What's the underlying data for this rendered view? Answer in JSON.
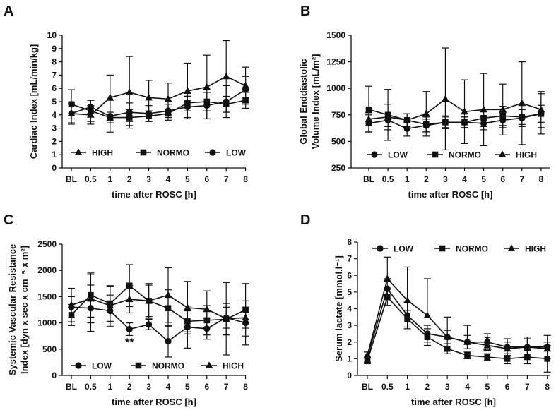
{
  "panels": {
    "A": {
      "label": "A"
    },
    "B": {
      "label": "B"
    },
    "C": {
      "label": "C"
    },
    "D": {
      "label": "D"
    }
  },
  "chart_data": [
    {
      "id": "A",
      "type": "line",
      "panel_label": "A",
      "title": "",
      "xlabel": "time after ROSC [h]",
      "ylabel": "Cardiac Index [mL/min/kg]",
      "ylabel_lines": [
        "Cardiac Index [mL/min/kg]"
      ],
      "categories": [
        "BL",
        "0.5",
        "1",
        "2",
        "3",
        "4",
        "5",
        "6",
        "7",
        "8"
      ],
      "ylim": [
        0,
        10
      ],
      "yticks": [
        0,
        1,
        2,
        3,
        4,
        5,
        6,
        7,
        8,
        9,
        10
      ],
      "ytick_labels": [
        "0",
        "1",
        "2",
        "3",
        "4",
        "5",
        "6",
        "7",
        "8",
        "9",
        "10"
      ],
      "legend_position": "bottom",
      "legend_order": [
        "HIGH",
        "NORMO",
        "LOW"
      ],
      "annotations": [],
      "series": [
        {
          "name": "LOW",
          "marker": "circle",
          "values": [
            4.1,
            4.6,
            3.9,
            4.2,
            4.1,
            4.3,
            4.6,
            4.7,
            5.0,
            5.9
          ],
          "errors": [
            0.8,
            0.5,
            1.2,
            0.7,
            0.6,
            0.5,
            0.8,
            1.0,
            1.2,
            1.0
          ],
          "err_dir": "both"
        },
        {
          "name": "NORMO",
          "marker": "square",
          "values": [
            4.8,
            4.3,
            3.8,
            3.8,
            3.9,
            4.1,
            4.9,
            5.0,
            4.8,
            5.1
          ],
          "errors": [
            1.1,
            0.8,
            0.4,
            0.6,
            0.4,
            0.5,
            0.6,
            0.7,
            0.6,
            0.6
          ],
          "err_dir": "both"
        },
        {
          "name": "HIGH",
          "marker": "triangle",
          "values": [
            4.1,
            4.0,
            5.3,
            5.7,
            5.3,
            5.2,
            5.8,
            6.1,
            6.9,
            6.2
          ],
          "errors": [
            0.7,
            0.7,
            1.7,
            2.7,
            1.3,
            1.2,
            2.1,
            2.4,
            2.7,
            1.4
          ],
          "err_dir": "both"
        }
      ]
    },
    {
      "id": "B",
      "type": "line",
      "panel_label": "B",
      "title": "",
      "xlabel": "time after ROSC [h]",
      "ylabel": "Global Enddiastolic Volume Index [mL/m²]",
      "ylabel_lines": [
        "Global Enddiastolic",
        "Volume Index  [mL/m²]"
      ],
      "categories": [
        "BL",
        "0.5",
        "1",
        "2",
        "3",
        "4",
        "5",
        "6",
        "7",
        "8"
      ],
      "ylim": [
        250,
        1500
      ],
      "yticks": [
        250,
        500,
        750,
        1000,
        1250,
        1500
      ],
      "ytick_labels": [
        "250",
        "500",
        "750",
        "1000",
        "1250",
        "1500"
      ],
      "legend_position": "bottom",
      "legend_order": [
        "LOW",
        "NORMO",
        "HIGH"
      ],
      "annotations": [],
      "series": [
        {
          "name": "LOW",
          "marker": "circle",
          "values": [
            670,
            700,
            620,
            650,
            680,
            680,
            670,
            700,
            720,
            760
          ],
          "errors": [
            80,
            60,
            70,
            60,
            60,
            50,
            60,
            70,
            80,
            80
          ],
          "err_dir": "both"
        },
        {
          "name": "NORMO",
          "marker": "square",
          "values": [
            800,
            750,
            700,
            660,
            680,
            680,
            720,
            740,
            730,
            760
          ],
          "errors": [
            220,
            240,
            60,
            70,
            50,
            50,
            80,
            90,
            70,
            190
          ],
          "err_dir": "both"
        },
        {
          "name": "HIGH",
          "marker": "triangle",
          "values": [
            710,
            730,
            700,
            760,
            900,
            780,
            800,
            800,
            860,
            800
          ],
          "errors": [
            60,
            120,
            60,
            210,
            480,
            300,
            340,
            240,
            390,
            170
          ],
          "err_dir": "both"
        }
      ]
    },
    {
      "id": "C",
      "type": "line",
      "panel_label": "C",
      "title": "",
      "xlabel": "time after ROSC [h]",
      "ylabel": "Systemic Vascular Resistance Index [dyn x sec x cm⁻⁵ x m²]",
      "ylabel_lines": [
        "Systemic Vascular Resistance",
        "Index [dyn x sec x cm⁻⁵ x m²]"
      ],
      "categories": [
        "BL",
        "0.5",
        "1",
        "2",
        "3",
        "4",
        "5",
        "6",
        "7",
        "8"
      ],
      "ylim": [
        0,
        2500
      ],
      "yticks": [
        0,
        500,
        1000,
        1500,
        2000,
        2500
      ],
      "ytick_labels": [
        "0",
        "500",
        "1000",
        "1500",
        "2000",
        "2500"
      ],
      "legend_position": "bottom",
      "legend_order": [
        "LOW",
        "NORMO",
        "HIGH"
      ],
      "annotations": [
        {
          "text": "**",
          "x": "2",
          "y": 640
        }
      ],
      "series": [
        {
          "name": "LOW",
          "marker": "circle",
          "values": [
            1300,
            1280,
            1230,
            880,
            970,
            650,
            920,
            890,
            1100,
            1000
          ],
          "errors": [
            200,
            440,
            300,
            120,
            100,
            300,
            400,
            200,
            200,
            420
          ],
          "err_dir": "both"
        },
        {
          "name": "NORMO",
          "marker": "square",
          "values": [
            1150,
            1530,
            1370,
            1710,
            1420,
            1280,
            1030,
            1050,
            1070,
            1250
          ],
          "errors": [
            200,
            420,
            340,
            400,
            330,
            350,
            200,
            280,
            300,
            500
          ],
          "err_dir": "both"
        },
        {
          "name": "HIGH",
          "marker": "triangle",
          "values": [
            1340,
            1460,
            1330,
            1450,
            1420,
            1530,
            1290,
            1260,
            1080,
            1100
          ],
          "errors": [
            320,
            460,
            370,
            260,
            300,
            520,
            500,
            350,
            690,
            200
          ],
          "err_dir": "both"
        }
      ]
    },
    {
      "id": "D",
      "type": "line",
      "panel_label": "D",
      "title": "",
      "xlabel": "time after ROSC [h]",
      "ylabel": "Serum lactate [mmol.l⁻¹]",
      "ylabel_lines": [
        "Serum lactate [mmol.l⁻¹]"
      ],
      "categories": [
        "BL",
        "0.5",
        "1",
        "2",
        "3",
        "4",
        "5",
        "6",
        "7",
        "8"
      ],
      "ylim": [
        0,
        8
      ],
      "yticks": [
        0,
        1,
        2,
        3,
        4,
        5,
        6,
        7,
        8
      ],
      "ytick_labels": [
        "0",
        "1",
        "2",
        "3",
        "4",
        "5",
        "6",
        "7",
        "8"
      ],
      "legend_position": "top",
      "legend_order": [
        "LOW",
        "NORMO",
        "HIGH"
      ],
      "annotations": [
        {
          "text": "*",
          "x": "5",
          "y": 2.15
        },
        {
          "text": "**",
          "x": "5",
          "y": 1.45
        }
      ],
      "series": [
        {
          "name": "LOW",
          "marker": "circle",
          "values": [
            1.1,
            5.2,
            3.6,
            2.5,
            2.3,
            2.0,
            2.0,
            1.7,
            1.7,
            1.7
          ],
          "errors": [
            0.3,
            0.6,
            0.8,
            0.5,
            0.4,
            0.4,
            0.5,
            0.5,
            0.6,
            0.7
          ],
          "err_dir": "both"
        },
        {
          "name": "NORMO",
          "marker": "square",
          "values": [
            0.9,
            4.7,
            3.4,
            2.3,
            1.6,
            1.2,
            1.1,
            1.0,
            1.1,
            1.0
          ],
          "errors": [
            0.2,
            0.5,
            0.5,
            0.5,
            0.3,
            0.2,
            0.2,
            0.3,
            0.4,
            0.8
          ],
          "err_dir": "both"
        },
        {
          "name": "HIGH",
          "marker": "triangle",
          "values": [
            1.2,
            5.8,
            4.5,
            3.6,
            2.3,
            2.0,
            1.8,
            1.6,
            1.7,
            1.6
          ],
          "errors": [
            0.2,
            1.3,
            2.0,
            2.2,
            1.2,
            1.0,
            0.5,
            0.4,
            0.5,
            0.4
          ],
          "err_dir": "up"
        }
      ]
    }
  ]
}
